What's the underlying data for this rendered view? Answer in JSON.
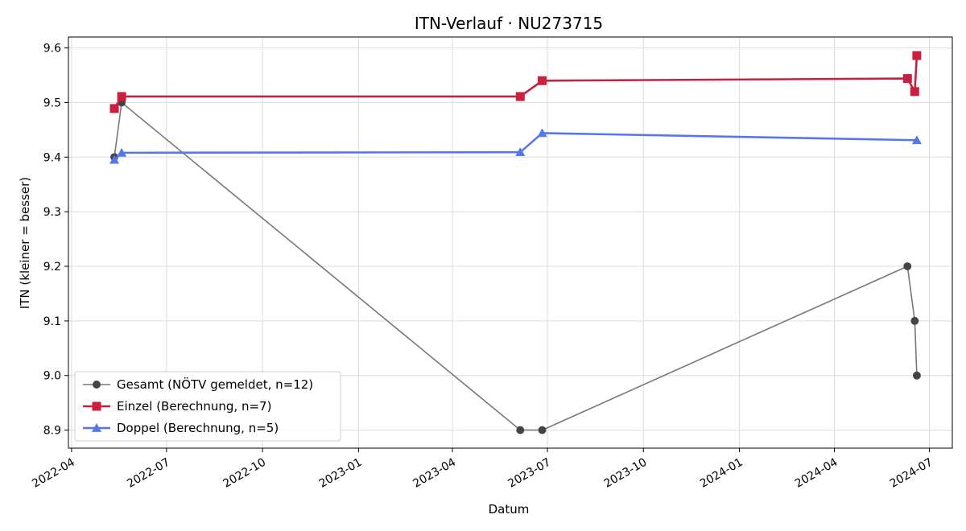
{
  "chart_data": {
    "type": "line",
    "title": "ITN-Verlauf · NU273715",
    "xlabel": "Datum",
    "ylabel": "ITN  (kleiner = besser)",
    "x_type": "date",
    "xlim": [
      "2022-03-29",
      "2024-07-23"
    ],
    "ylim": [
      8.867,
      9.62
    ],
    "x_ticks": [
      "2022-04-01",
      "2022-07-01",
      "2022-10-01",
      "2023-01-01",
      "2023-04-01",
      "2023-07-01",
      "2023-10-01",
      "2024-01-01",
      "2024-04-01",
      "2024-07-01"
    ],
    "x_tick_labels": [
      "2022-04",
      "2022-07",
      "2022-10",
      "2023-01",
      "2023-04",
      "2023-07",
      "2023-10",
      "2024-01",
      "2024-04",
      "2024-07"
    ],
    "y_ticks": [
      8.9,
      9.0,
      9.1,
      9.2,
      9.3,
      9.4,
      9.5,
      9.6
    ],
    "y_tick_labels": [
      "8.9",
      "9.0",
      "9.1",
      "9.2",
      "9.3",
      "9.4",
      "9.5",
      "9.6"
    ],
    "grid": true,
    "legend_position": "lower-left",
    "series": [
      {
        "name": "Gesamt (NÖTV gemeldet, n=12)",
        "color": "#777777",
        "marker_color": "#444444",
        "marker": "circle",
        "line_width": 1.6,
        "points": [
          {
            "x": "2022-05-12",
            "y": 9.4
          },
          {
            "x": "2022-05-19",
            "y": 9.5
          },
          {
            "x": "2023-06-05",
            "y": 8.9
          },
          {
            "x": "2023-06-26",
            "y": 8.9
          },
          {
            "x": "2024-06-10",
            "y": 9.2
          },
          {
            "x": "2024-06-17",
            "y": 9.1
          },
          {
            "x": "2024-06-19",
            "y": 9.0
          }
        ]
      },
      {
        "name": "Einzel (Berechnung, n=7)",
        "color": "#c8203e",
        "marker_color": "#c8203e",
        "marker": "square",
        "line_width": 2.6,
        "points": [
          {
            "x": "2022-05-12",
            "y": 9.489
          },
          {
            "x": "2022-05-19",
            "y": 9.511
          },
          {
            "x": "2023-06-05",
            "y": 9.511
          },
          {
            "x": "2023-06-26",
            "y": 9.54
          },
          {
            "x": "2024-06-10",
            "y": 9.544
          },
          {
            "x": "2024-06-17",
            "y": 9.52
          },
          {
            "x": "2024-06-19",
            "y": 9.586
          }
        ]
      },
      {
        "name": "Doppel (Berechnung, n=5)",
        "color": "#5577ee",
        "marker_color": "#5577ee",
        "marker": "triangle",
        "line_width": 2.6,
        "points": [
          {
            "x": "2022-05-12",
            "y": 9.395
          },
          {
            "x": "2022-05-19",
            "y": 9.408
          },
          {
            "x": "2023-06-05",
            "y": 9.409
          },
          {
            "x": "2023-06-26",
            "y": 9.444
          },
          {
            "x": "2024-06-19",
            "y": 9.431
          }
        ]
      }
    ]
  }
}
